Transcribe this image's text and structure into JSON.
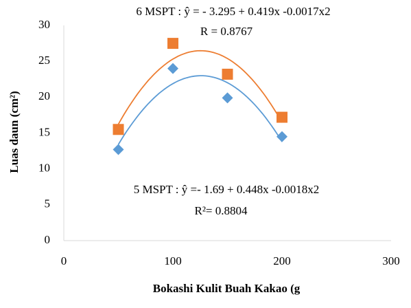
{
  "chart_data": {
    "type": "scatter",
    "x_label": "Bokashi Kulit Buah Kakao (g",
    "y_label": "Luas daun (cm²)",
    "annotations": [
      "6 MSPT :  ŷ  = - 3.295 + 0.419x -0.0017x2",
      "R = 0.8767",
      "5 MSPT : ŷ  =- 1.69 + 0.448x -0.0018x2",
      "R²= 0.8804"
    ],
    "trendline": "poly2",
    "series": [
      {
        "name": "5 MSPT",
        "color": "#5b9bd5",
        "marker": "diamond",
        "x": [
          50,
          100,
          150,
          200
        ],
        "values": [
          12.7,
          24.0,
          19.9,
          14.5
        ]
      },
      {
        "name": "6 MSPT",
        "color": "#ed7d31",
        "marker": "square",
        "x": [
          50,
          100,
          150,
          200
        ],
        "values": [
          15.5,
          27.5,
          23.2,
          17.2
        ]
      }
    ],
    "xlim": [
      0,
      300
    ],
    "xticks": [
      0,
      100,
      200,
      300
    ],
    "ylim": [
      0,
      30
    ],
    "yticks": [
      0,
      5,
      10,
      15,
      20,
      25,
      30
    ]
  }
}
